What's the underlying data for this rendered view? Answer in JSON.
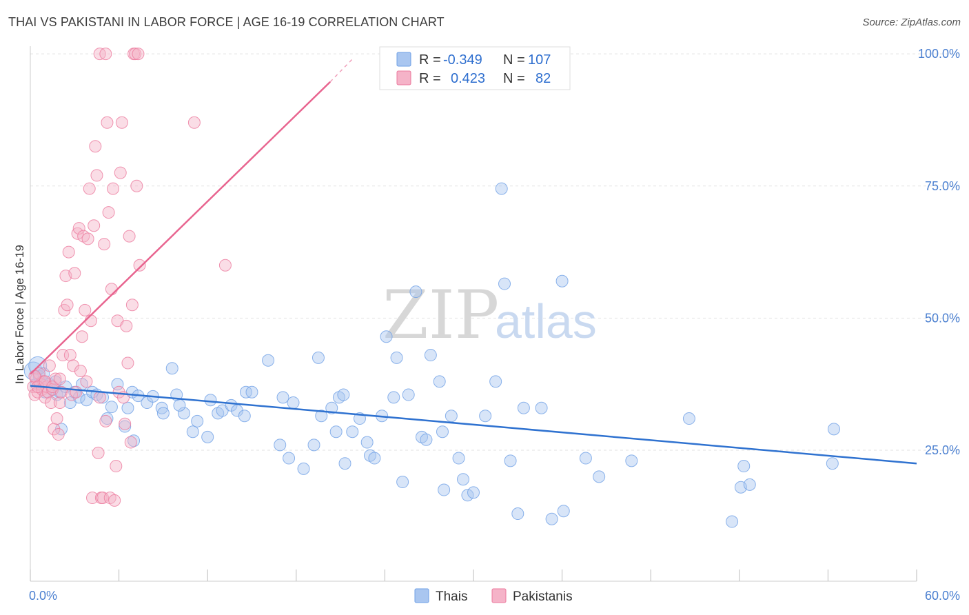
{
  "header": {
    "title": "THAI VS PAKISTANI IN LABOR FORCE | AGE 16-19 CORRELATION CHART",
    "source": "Source: ZipAtlas.com"
  },
  "watermark": {
    "zip": "ZIP",
    "atlas": "atlas"
  },
  "legend_top": {
    "rows": [
      {
        "r_label": "R =",
        "r_value": "-0.349",
        "n_label": "N =",
        "n_value": "107",
        "color": "#a9c6f0"
      },
      {
        "r_label": "R =",
        "r_value": "0.423",
        "n_label": "N =",
        "n_value": "82",
        "color": "#f5b3c8"
      }
    ]
  },
  "legend_bottom": {
    "items": [
      {
        "label": "Thais",
        "color": "#a9c6f0"
      },
      {
        "label": "Pakistanis",
        "color": "#f5b3c8"
      }
    ]
  },
  "chart_data": {
    "type": "scatter",
    "title": "THAI VS PAKISTANI IN LABOR FORCE | AGE 16-19 CORRELATION CHART",
    "xlabel": "",
    "ylabel": "In Labor Force | Age 16-19",
    "xlim": [
      0,
      60
    ],
    "ylim": [
      0,
      102
    ],
    "x_tick_labels": [
      {
        "value": 0,
        "label": "0.0%"
      },
      {
        "value": 60,
        "label": "60.0%"
      }
    ],
    "y_tick_labels": [
      {
        "value": 25,
        "label": "25.0%"
      },
      {
        "value": 50,
        "label": "50.0%"
      },
      {
        "value": 75,
        "label": "75.0%"
      },
      {
        "value": 100,
        "label": "100.0%"
      }
    ],
    "grid": true,
    "legend_position": "top-center",
    "series": [
      {
        "name": "Thais",
        "color": "#6fa0e6",
        "fill": "#a9c6f0",
        "trend": {
          "x": [
            0,
            60
          ],
          "y": [
            37.2,
            22.5
          ]
        },
        "points": [
          [
            0.2,
            40
          ],
          [
            0.4,
            37.5
          ],
          [
            0.6,
            39
          ],
          [
            0.8,
            38
          ],
          [
            1,
            36
          ],
          [
            1.3,
            37.5
          ],
          [
            1.5,
            36.5
          ],
          [
            1.8,
            35.5
          ],
          [
            2,
            36
          ],
          [
            2.1,
            29
          ],
          [
            2.4,
            37
          ],
          [
            2.7,
            34
          ],
          [
            3,
            36
          ],
          [
            3.3,
            35
          ],
          [
            3.5,
            37.5
          ],
          [
            3.8,
            34.5
          ],
          [
            4.2,
            36
          ],
          [
            4.5,
            35.5
          ],
          [
            5.2,
            31
          ],
          [
            5.5,
            33.2
          ],
          [
            5.9,
            37.5
          ],
          [
            6.4,
            29.5
          ],
          [
            6.9,
            36
          ],
          [
            7,
            26.8
          ],
          [
            7.3,
            35.3
          ],
          [
            7.9,
            34
          ],
          [
            8.3,
            35.2
          ],
          [
            8.9,
            33
          ],
          [
            9,
            32
          ],
          [
            9.6,
            40.5
          ],
          [
            9.9,
            35.5
          ],
          [
            10.4,
            32
          ],
          [
            11,
            28.5
          ],
          [
            11.3,
            30.5
          ],
          [
            12,
            27.5
          ],
          [
            12.2,
            34.5
          ],
          [
            12.7,
            32
          ],
          [
            13,
            32.5
          ],
          [
            13.6,
            33.5
          ],
          [
            14,
            32.5
          ],
          [
            14.6,
            36
          ],
          [
            15,
            36
          ],
          [
            16.1,
            42
          ],
          [
            16.9,
            26
          ],
          [
            17.5,
            23.5
          ],
          [
            17.8,
            34
          ],
          [
            18.5,
            21.5
          ],
          [
            19.2,
            26
          ],
          [
            19.5,
            42.5
          ],
          [
            19.7,
            31.5
          ],
          [
            20.4,
            33
          ],
          [
            20.7,
            28.5
          ],
          [
            20.9,
            35
          ],
          [
            21.2,
            35.5
          ],
          [
            21.3,
            22.5
          ],
          [
            21.8,
            28.5
          ],
          [
            22.3,
            31
          ],
          [
            22.8,
            26.5
          ],
          [
            23,
            24
          ],
          [
            23.3,
            23.5
          ],
          [
            23.8,
            31.5
          ],
          [
            24.1,
            46.5
          ],
          [
            24.6,
            35
          ],
          [
            24.8,
            42.5
          ],
          [
            25.2,
            19
          ],
          [
            25.6,
            35.5
          ],
          [
            26.1,
            55
          ],
          [
            26.5,
            27.5
          ],
          [
            26.8,
            27
          ],
          [
            27.1,
            43
          ],
          [
            27.7,
            38
          ],
          [
            27.9,
            28.5
          ],
          [
            28,
            17.5
          ],
          [
            28.5,
            31.5
          ],
          [
            29,
            23.5
          ],
          [
            29.3,
            19.5
          ],
          [
            29.6,
            16.5
          ],
          [
            30,
            17
          ],
          [
            30.8,
            31.5
          ],
          [
            31.5,
            38
          ],
          [
            31.9,
            74.5
          ],
          [
            32.1,
            56.5
          ],
          [
            32.5,
            23
          ],
          [
            33,
            13
          ],
          [
            33.4,
            33
          ],
          [
            34.6,
            33
          ],
          [
            35.3,
            12
          ],
          [
            36,
            57
          ],
          [
            36.1,
            13.5
          ],
          [
            37.6,
            23.5
          ],
          [
            38.5,
            20
          ],
          [
            40.7,
            23
          ],
          [
            44.6,
            31
          ],
          [
            47.5,
            11.5
          ],
          [
            48.1,
            18
          ],
          [
            48.3,
            22
          ],
          [
            48.7,
            18.5
          ],
          [
            54.3,
            22.5
          ],
          [
            54.4,
            29
          ],
          [
            0.5,
            41
          ],
          [
            0.9,
            39.5
          ],
          [
            1.7,
            38
          ],
          [
            4.9,
            35
          ],
          [
            6.6,
            33
          ],
          [
            10.1,
            33.5
          ],
          [
            14.5,
            31.5
          ],
          [
            17.1,
            35
          ]
        ]
      },
      {
        "name": "Pakistanis",
        "color": "#ec7a9e",
        "fill": "#f5b3c8",
        "trend": {
          "x": [
            0,
            20.3
          ],
          "y": [
            39.4,
            94.7
          ]
        },
        "trend_dashed": {
          "x": [
            20.3,
            21.8
          ],
          "y": [
            94.7,
            99
          ]
        },
        "points": [
          [
            0.2,
            37
          ],
          [
            0.3,
            35.5
          ],
          [
            0.4,
            38.5
          ],
          [
            0.5,
            36
          ],
          [
            0.6,
            39.5
          ],
          [
            0.7,
            37.5
          ],
          [
            0.8,
            36.5
          ],
          [
            0.9,
            38
          ],
          [
            1,
            35
          ],
          [
            1.1,
            37
          ],
          [
            1.2,
            36
          ],
          [
            1.3,
            41
          ],
          [
            1.4,
            34
          ],
          [
            1.5,
            36.5
          ],
          [
            1.6,
            29
          ],
          [
            1.7,
            38.5
          ],
          [
            1.8,
            31
          ],
          [
            1.9,
            28
          ],
          [
            2,
            34
          ],
          [
            2.1,
            36
          ],
          [
            2.2,
            43
          ],
          [
            2.3,
            51.5
          ],
          [
            2.4,
            58
          ],
          [
            2.5,
            52.5
          ],
          [
            2.6,
            62.5
          ],
          [
            2.7,
            43
          ],
          [
            2.8,
            35.5
          ],
          [
            2.9,
            41
          ],
          [
            3,
            58.5
          ],
          [
            3.1,
            36
          ],
          [
            3.2,
            66
          ],
          [
            3.3,
            67
          ],
          [
            3.4,
            40
          ],
          [
            3.5,
            46.5
          ],
          [
            3.6,
            65.5
          ],
          [
            3.7,
            51.5
          ],
          [
            3.8,
            38
          ],
          [
            3.9,
            65
          ],
          [
            4,
            74.5
          ],
          [
            4.1,
            49.5
          ],
          [
            4.2,
            16
          ],
          [
            4.3,
            67.5
          ],
          [
            4.4,
            82.5
          ],
          [
            4.5,
            77
          ],
          [
            4.6,
            24.5
          ],
          [
            4.7,
            35
          ],
          [
            4.8,
            16
          ],
          [
            4.9,
            16
          ],
          [
            5,
            64
          ],
          [
            5.1,
            30.5
          ],
          [
            5.2,
            87
          ],
          [
            5.3,
            70
          ],
          [
            5.4,
            16
          ],
          [
            5.5,
            55.5
          ],
          [
            5.6,
            74.5
          ],
          [
            5.7,
            15.5
          ],
          [
            5.8,
            22
          ],
          [
            5.9,
            49.5
          ],
          [
            6,
            36
          ],
          [
            6.1,
            77.5
          ],
          [
            6.2,
            87
          ],
          [
            6.3,
            35
          ],
          [
            6.4,
            30
          ],
          [
            6.5,
            48.5
          ],
          [
            6.6,
            41.5
          ],
          [
            6.7,
            65.5
          ],
          [
            6.8,
            26.5
          ],
          [
            6.9,
            52.5
          ],
          [
            7,
            100
          ],
          [
            7.1,
            100
          ],
          [
            7.2,
            75
          ],
          [
            7.3,
            100
          ],
          [
            7.4,
            60
          ],
          [
            4.7,
            100
          ],
          [
            5.1,
            100
          ],
          [
            11.1,
            87
          ],
          [
            13.2,
            60
          ],
          [
            0.3,
            39
          ],
          [
            0.5,
            37
          ],
          [
            1.0,
            38
          ],
          [
            1.5,
            37
          ],
          [
            2.0,
            38.5
          ]
        ]
      }
    ]
  }
}
